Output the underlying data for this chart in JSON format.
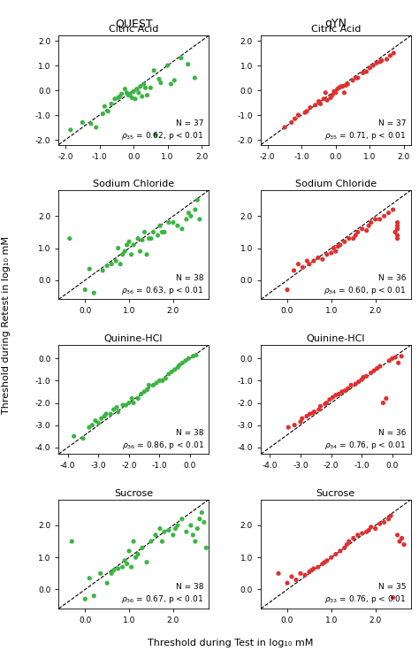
{
  "col_titles": [
    "QUEST",
    "qYN"
  ],
  "colors": [
    "#3cb543",
    "#e03030"
  ],
  "xlabel": "Threshold during Test in log₁₀ mM",
  "ylabel": "Threshold during Retest in log₁₀ mM",
  "subplots": [
    {
      "row": 0,
      "col": 0,
      "title": "Citric Acid",
      "xlim": [
        -2.2,
        2.2
      ],
      "ylim": [
        -2.2,
        2.2
      ],
      "xticks": [
        -2.0,
        -1.0,
        0.0,
        1.0,
        2.0
      ],
      "yticks": [
        -2.0,
        -1.0,
        0.0,
        1.0,
        2.0
      ],
      "N": 37,
      "rho_sub": "35",
      "rho_val": "0.62",
      "color": "#3cb543",
      "x": [
        -1.85,
        -1.5,
        -1.25,
        -1.1,
        -0.9,
        -0.85,
        -0.75,
        -0.65,
        -0.55,
        -0.45,
        -0.4,
        -0.35,
        -0.25,
        -0.2,
        -0.15,
        -0.1,
        -0.05,
        0.0,
        0.05,
        0.1,
        0.15,
        0.2,
        0.25,
        0.3,
        0.35,
        0.4,
        0.5,
        0.6,
        0.65,
        0.75,
        0.8,
        1.0,
        1.1,
        1.2,
        1.4,
        1.6,
        1.8
      ],
      "y": [
        -1.6,
        -1.3,
        -1.35,
        -1.5,
        -0.95,
        -0.65,
        -0.85,
        -0.55,
        -0.35,
        -0.3,
        -0.25,
        -0.15,
        0.05,
        -0.1,
        -0.2,
        -0.15,
        -0.3,
        -0.05,
        -0.35,
        0.05,
        -0.1,
        0.15,
        -0.25,
        0.25,
        0.1,
        -0.2,
        0.1,
        0.8,
        -1.8,
        0.45,
        0.3,
        1.0,
        0.25,
        0.4,
        1.3,
        1.05,
        0.5
      ]
    },
    {
      "row": 0,
      "col": 1,
      "title": "Citric Acid",
      "xlim": [
        -2.2,
        2.2
      ],
      "ylim": [
        -2.2,
        2.2
      ],
      "xticks": [
        -2.0,
        -1.0,
        0.0,
        1.0,
        2.0
      ],
      "yticks": [
        -2.0,
        -1.0,
        0.0,
        1.0,
        2.0
      ],
      "N": 37,
      "rho_sub": "35",
      "rho_val": "0.71",
      "color": "#e03030",
      "x": [
        -1.5,
        -1.3,
        -1.2,
        -1.1,
        -0.9,
        -0.85,
        -0.75,
        -0.6,
        -0.5,
        -0.45,
        -0.35,
        -0.3,
        -0.25,
        -0.15,
        -0.1,
        -0.05,
        0.0,
        0.05,
        0.1,
        0.15,
        0.2,
        0.25,
        0.3,
        0.35,
        0.5,
        0.6,
        0.65,
        0.8,
        0.9,
        1.0,
        1.1,
        1.2,
        1.3,
        1.35,
        1.5,
        1.6,
        1.7
      ],
      "y": [
        -1.5,
        -1.3,
        -1.15,
        -1.0,
        -0.9,
        -0.85,
        -0.7,
        -0.6,
        -0.45,
        -0.55,
        -0.35,
        -0.1,
        -0.4,
        -0.3,
        -0.2,
        -0.05,
        -0.1,
        0.05,
        0.1,
        0.15,
        0.15,
        -0.1,
        0.2,
        0.25,
        0.4,
        0.5,
        0.5,
        0.7,
        0.75,
        0.9,
        1.0,
        1.1,
        1.15,
        1.2,
        1.25,
        1.4,
        1.5
      ]
    },
    {
      "row": 1,
      "col": 0,
      "title": "Sodium Chloride",
      "xlim": [
        -0.6,
        2.8
      ],
      "ylim": [
        -0.6,
        2.8
      ],
      "xticks": [
        0.0,
        1.0,
        2.0
      ],
      "yticks": [
        0.0,
        1.0,
        2.0
      ],
      "N": 38,
      "rho_sub": "36",
      "rho_val": "0.63",
      "color": "#3cb543",
      "x": [
        -0.35,
        0.0,
        0.1,
        0.2,
        0.4,
        0.5,
        0.6,
        0.7,
        0.75,
        0.8,
        0.85,
        0.9,
        0.95,
        1.0,
        1.05,
        1.1,
        1.2,
        1.25,
        1.3,
        1.35,
        1.4,
        1.45,
        1.5,
        1.55,
        1.65,
        1.7,
        1.75,
        1.8,
        1.9,
        2.0,
        2.1,
        2.2,
        2.3,
        2.35,
        2.4,
        2.5,
        2.55,
        2.6
      ],
      "y": [
        1.3,
        -0.3,
        0.35,
        -0.4,
        0.3,
        0.45,
        0.5,
        0.6,
        1.0,
        0.5,
        0.8,
        0.9,
        1.1,
        1.2,
        0.8,
        1.1,
        1.3,
        0.9,
        1.25,
        1.5,
        0.8,
        1.3,
        1.3,
        1.5,
        1.4,
        1.7,
        1.5,
        1.5,
        1.8,
        1.8,
        1.7,
        1.6,
        1.9,
        2.1,
        2.0,
        2.2,
        2.5,
        1.9
      ]
    },
    {
      "row": 1,
      "col": 1,
      "title": "Sodium Chloride",
      "xlim": [
        -0.6,
        2.8
      ],
      "ylim": [
        -0.6,
        2.8
      ],
      "xticks": [
        0.0,
        1.0,
        2.0
      ],
      "yticks": [
        0.0,
        1.0,
        2.0
      ],
      "N": 36,
      "rho_sub": "34",
      "rho_val": "0.60",
      "color": "#e03030",
      "x": [
        0.0,
        0.15,
        0.25,
        0.35,
        0.45,
        0.5,
        0.6,
        0.7,
        0.8,
        0.9,
        1.0,
        1.05,
        1.1,
        1.15,
        1.2,
        1.3,
        1.4,
        1.5,
        1.55,
        1.6,
        1.7,
        1.8,
        1.85,
        1.9,
        2.0,
        2.1,
        2.2,
        2.3,
        2.4,
        2.45,
        2.5,
        2.5,
        2.5,
        2.5,
        2.5,
        2.5
      ],
      "y": [
        -0.3,
        0.3,
        0.5,
        0.4,
        0.6,
        0.5,
        0.6,
        0.7,
        0.65,
        0.8,
        0.85,
        1.0,
        0.9,
        1.05,
        1.1,
        1.2,
        1.3,
        1.3,
        1.4,
        1.5,
        1.6,
        1.55,
        1.7,
        1.8,
        1.9,
        1.9,
        2.0,
        2.1,
        2.2,
        1.5,
        1.8,
        1.7,
        1.6,
        1.3,
        1.4,
        1.6
      ]
    },
    {
      "row": 2,
      "col": 0,
      "title": "Quinine-HCl",
      "xlim": [
        -4.3,
        0.6
      ],
      "ylim": [
        -4.3,
        0.6
      ],
      "xticks": [
        -4.0,
        -3.0,
        -2.0,
        -1.0,
        0.0
      ],
      "yticks": [
        -4.0,
        -3.0,
        -2.0,
        -1.0,
        0.0
      ],
      "N": 38,
      "rho_sub": "36",
      "rho_val": "0.86",
      "color": "#3cb543",
      "x": [
        -3.8,
        -3.5,
        -3.3,
        -3.2,
        -3.1,
        -3.0,
        -2.9,
        -2.8,
        -2.75,
        -2.6,
        -2.5,
        -2.4,
        -2.35,
        -2.2,
        -2.1,
        -2.0,
        -1.9,
        -1.85,
        -1.7,
        -1.6,
        -1.5,
        -1.4,
        -1.35,
        -1.2,
        -1.1,
        -1.0,
        -0.9,
        -0.8,
        -0.7,
        -0.6,
        -0.5,
        -0.4,
        -0.35,
        -0.25,
        -0.15,
        -0.05,
        0.1,
        0.2
      ],
      "y": [
        -3.5,
        -3.6,
        -3.1,
        -3.0,
        -2.8,
        -2.9,
        -2.7,
        -2.6,
        -2.5,
        -2.5,
        -2.3,
        -2.2,
        -2.4,
        -2.1,
        -2.1,
        -2.0,
        -1.8,
        -2.0,
        -1.8,
        -1.6,
        -1.5,
        -1.4,
        -1.2,
        -1.2,
        -1.1,
        -1.0,
        -1.0,
        -0.9,
        -0.7,
        -0.6,
        -0.5,
        -0.4,
        -0.3,
        -0.2,
        -0.1,
        0.0,
        0.1,
        0.15
      ]
    },
    {
      "row": 2,
      "col": 1,
      "title": "Quinine-HCl",
      "xlim": [
        -4.3,
        0.6
      ],
      "ylim": [
        -4.3,
        0.6
      ],
      "xticks": [
        -4.0,
        -3.0,
        -2.0,
        -1.0,
        0.0
      ],
      "yticks": [
        -4.0,
        -3.0,
        -2.0,
        -1.0,
        0.0
      ],
      "N": 36,
      "rho_sub": "34",
      "rho_val": "0.76",
      "color": "#e03030",
      "x": [
        -3.4,
        -3.2,
        -3.0,
        -2.95,
        -2.8,
        -2.7,
        -2.6,
        -2.55,
        -2.4,
        -2.35,
        -2.2,
        -2.15,
        -2.05,
        -1.95,
        -1.85,
        -1.75,
        -1.65,
        -1.55,
        -1.45,
        -1.35,
        -1.2,
        -1.1,
        -1.0,
        -0.95,
        -0.85,
        -0.7,
        -0.6,
        -0.5,
        -0.4,
        -0.3,
        -0.2,
        -0.1,
        0.0,
        0.1,
        0.2,
        0.3
      ],
      "y": [
        -3.1,
        -3.0,
        -2.85,
        -2.7,
        -2.6,
        -2.5,
        -2.45,
        -2.4,
        -2.3,
        -2.15,
        -2.05,
        -2.0,
        -1.85,
        -1.75,
        -1.65,
        -1.6,
        -1.5,
        -1.45,
        -1.35,
        -1.2,
        -1.15,
        -1.05,
        -0.95,
        -0.85,
        -0.8,
        -0.65,
        -0.55,
        -0.45,
        -0.35,
        -2.0,
        -1.8,
        -0.1,
        0.0,
        0.05,
        -0.2,
        0.1
      ]
    },
    {
      "row": 3,
      "col": 0,
      "title": "Sucrose",
      "xlim": [
        -0.6,
        2.8
      ],
      "ylim": [
        -0.6,
        2.8
      ],
      "xticks": [
        0.0,
        1.0,
        2.0
      ],
      "yticks": [
        0.0,
        1.0,
        2.0
      ],
      "N": 38,
      "rho_sub": "36",
      "rho_val": "0.67",
      "color": "#3cb543",
      "x": [
        -0.3,
        0.0,
        0.1,
        0.2,
        0.35,
        0.5,
        0.6,
        0.65,
        0.75,
        0.85,
        0.9,
        0.95,
        1.0,
        1.05,
        1.1,
        1.15,
        1.2,
        1.3,
        1.4,
        1.5,
        1.6,
        1.7,
        1.75,
        1.8,
        1.9,
        2.0,
        2.05,
        2.1,
        2.2,
        2.3,
        2.4,
        2.45,
        2.5,
        2.55,
        2.6,
        2.65,
        2.7,
        2.75
      ],
      "y": [
        1.5,
        -0.3,
        0.35,
        -0.2,
        0.5,
        0.2,
        0.5,
        0.6,
        0.65,
        0.7,
        0.9,
        0.8,
        1.2,
        0.7,
        1.5,
        1.0,
        1.1,
        1.3,
        0.85,
        1.5,
        1.7,
        1.9,
        1.5,
        1.8,
        1.85,
        1.7,
        1.9,
        2.0,
        2.2,
        1.8,
        2.0,
        1.7,
        1.5,
        1.9,
        2.2,
        2.4,
        2.1,
        1.3
      ]
    },
    {
      "row": 3,
      "col": 1,
      "title": "Sucrose",
      "xlim": [
        -0.6,
        2.8
      ],
      "ylim": [
        -0.6,
        2.8
      ],
      "xticks": [
        0.0,
        1.0,
        2.0
      ],
      "yticks": [
        0.0,
        1.0,
        2.0
      ],
      "N": 35,
      "rho_sub": "33",
      "rho_val": "0.76",
      "color": "#e03030",
      "x": [
        -0.2,
        0.0,
        0.1,
        0.2,
        0.3,
        0.4,
        0.5,
        0.55,
        0.6,
        0.7,
        0.8,
        0.85,
        0.9,
        1.0,
        1.1,
        1.2,
        1.3,
        1.35,
        1.4,
        1.5,
        1.6,
        1.7,
        1.8,
        1.85,
        1.9,
        2.0,
        2.1,
        2.2,
        2.3,
        2.35,
        2.4,
        2.5,
        2.55,
        2.6,
        2.65
      ],
      "y": [
        0.5,
        0.2,
        0.4,
        0.3,
        0.5,
        0.45,
        0.55,
        0.6,
        0.65,
        0.7,
        0.8,
        0.85,
        0.9,
        1.0,
        1.1,
        1.2,
        1.3,
        1.4,
        1.5,
        1.6,
        1.7,
        1.75,
        1.8,
        1.85,
        1.95,
        1.9,
        2.05,
        2.1,
        2.2,
        2.3,
        -0.25,
        1.7,
        1.5,
        1.6,
        1.4
      ]
    }
  ]
}
